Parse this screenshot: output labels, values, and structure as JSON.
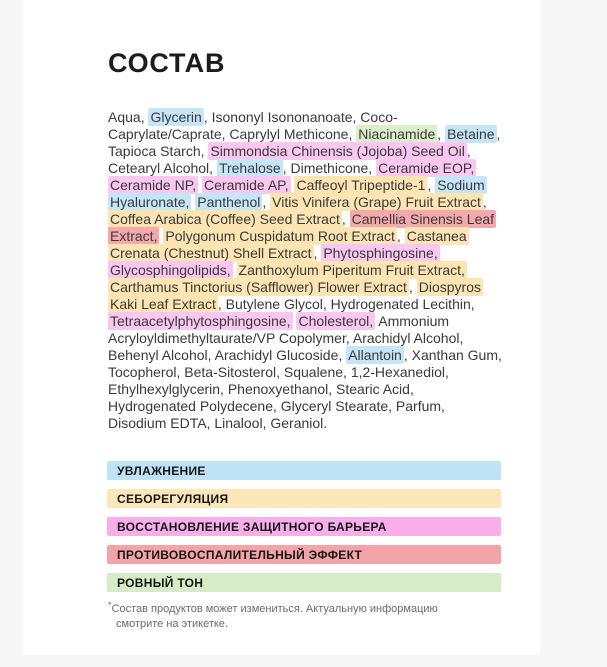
{
  "page": {
    "title": "СОСТАВ"
  },
  "highlight_colors": {
    "blue": "#c6e6f7",
    "yellow": "#fce5b2",
    "pink": "#fac7f0",
    "red": "#f4a9ad",
    "green": "#dcedc9"
  },
  "ingredients": [
    {
      "t": "Aqua, "
    },
    {
      "t": "Glycerin",
      "h": "blue"
    },
    {
      "t": ", Isononyl Isononanoate, Coco-Caprylate/Caprate, Caprylyl Methicone, "
    },
    {
      "t": "Niacinamide",
      "h": "green"
    },
    {
      "t": ", "
    },
    {
      "t": "Betaine",
      "h": "blue"
    },
    {
      "t": ", Tapioca Starch, "
    },
    {
      "t": "Simmondsia Chinensis (Jojoba) Seed Oil",
      "h": "pink"
    },
    {
      "t": ", Cetearyl Alcohol, "
    },
    {
      "t": "Trehalose",
      "h": "blue"
    },
    {
      "t": ", Dimethicone, "
    },
    {
      "t": "Ceramide EOP, Ceramide NP,",
      "h": "pink"
    },
    {
      "t": " "
    },
    {
      "t": "Ceramide AP,",
      "h": "pink"
    },
    {
      "t": " "
    },
    {
      "t": "Caffeoyl Tripeptide-1",
      "h": "yellow"
    },
    {
      "t": ", "
    },
    {
      "t": "Sodium Hyaluronate,",
      "h": "blue"
    },
    {
      "t": " "
    },
    {
      "t": "Panthenol",
      "h": "blue"
    },
    {
      "t": ", "
    },
    {
      "t": "Vitis Vinifera (Grape) Fruit Extract",
      "h": "yellow"
    },
    {
      "t": ", "
    },
    {
      "t": "Coffea Arabica (Coffee) Seed Extract",
      "h": "yellow"
    },
    {
      "t": ", "
    },
    {
      "t": "Camellia Sinensis Leaf Extract,",
      "h": "red"
    },
    {
      "t": " "
    },
    {
      "t": "Polygonum Cuspidatum Root Extract",
      "h": "yellow"
    },
    {
      "t": ", "
    },
    {
      "t": "Castanea Crenata (Chestnut) Shell Extract",
      "h": "yellow"
    },
    {
      "t": ", "
    },
    {
      "t": "Phytosphingosine,",
      "h": "pink"
    },
    {
      "t": " "
    },
    {
      "t": "Glycosphingolipids,",
      "h": "pink"
    },
    {
      "t": " "
    },
    {
      "t": "Zanthoxylum Piperitum Fruit Extract,",
      "h": "yellow"
    },
    {
      "t": " "
    },
    {
      "t": "Carthamus Tinctorius (Safflower) Flower Extract",
      "h": "yellow"
    },
    {
      "t": ", "
    },
    {
      "t": "Diospyros Kaki Leaf Extract",
      "h": "yellow"
    },
    {
      "t": ", Butylene Glycol, Hydrogenated Lecithin, "
    },
    {
      "t": "Tetraacetylphytosphingosine,",
      "h": "pink"
    },
    {
      "t": " "
    },
    {
      "t": "Cholesterol,",
      "h": "pink"
    },
    {
      "t": " Ammonium Acryloyldimethyltaurate/VP Copolymer, Arachidyl Alcohol, Behenyl Alcohol, Arachidyl Glucoside, "
    },
    {
      "t": "Allantoin",
      "h": "blue"
    },
    {
      "t": ", Xanthan Gum, Tocopherol, Beta-Sitosterol, Squalene, 1,2-Hexanediol, Ethylhexylglycerin, Phenoxyethanol, Stearic Acid, Hydrogenated Polydecene, Glyceryl Stearate, Parfum, Disodium EDTA, Linalool, Geraniol."
    }
  ],
  "legend": [
    {
      "label": "УВЛАЖНЕНИЕ",
      "color": "#bfe3f6"
    },
    {
      "label": "СЕБОРЕГУЛЯЦИЯ",
      "color": "#fce7ba"
    },
    {
      "label": "ВОССТАНОВЛЕНИЕ ЗАЩИТНОГО БАРЬЕРА",
      "color": "#f7aeea"
    },
    {
      "label": "ПРОТИВОВОСПАЛИТЕЛЬНЫЙ ЭФФЕКТ",
      "color": "#f3a4a9"
    },
    {
      "label": "РОВНЫЙ ТОН",
      "color": "#d6ecc6"
    }
  ],
  "footnote": {
    "marker": "*",
    "text": "Состав продуктов может измениться. Актуальную информацию смотрите на этикетке."
  }
}
